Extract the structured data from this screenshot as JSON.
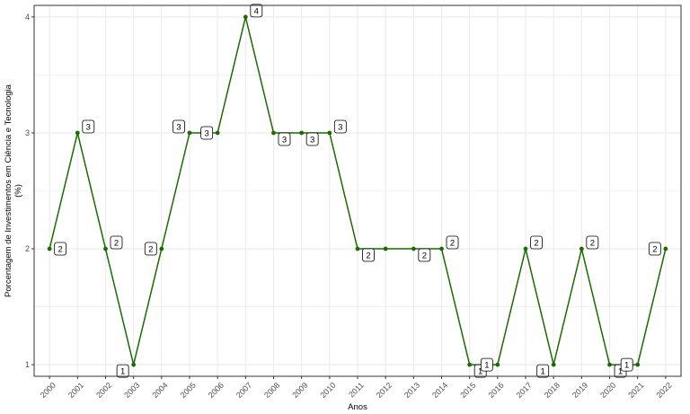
{
  "chart_data": {
    "type": "line",
    "title": "",
    "xlabel": "Anos",
    "ylabel_line1": "Porcentagem de Investimentos em Ciência e Tecnologia",
    "ylabel_line2": "(%)",
    "x": [
      "2000",
      "2001",
      "2002",
      "2003",
      "2004",
      "2005",
      "2006",
      "2007",
      "2008",
      "2009",
      "2010",
      "2011",
      "2012",
      "2013",
      "2014",
      "2015",
      "2016",
      "2017",
      "2018",
      "2019",
      "2020",
      "2021",
      "2022"
    ],
    "values": [
      2,
      3,
      2,
      1,
      2,
      3,
      3,
      4,
      3,
      3,
      3,
      2,
      2,
      2,
      2,
      1,
      1,
      2,
      1,
      2,
      1,
      1,
      2
    ],
    "labels_shown": [
      true,
      true,
      true,
      true,
      true,
      true,
      true,
      true,
      true,
      true,
      true,
      true,
      false,
      true,
      true,
      true,
      true,
      true,
      true,
      true,
      true,
      true,
      true
    ],
    "ylim": [
      0.9,
      4.1
    ],
    "yticks": [
      1,
      2,
      3,
      4
    ],
    "grid": true,
    "colors": {
      "line": "#1a6b00",
      "point": "#1a6b00",
      "grid": "#ebebeb",
      "panel_border": "#333333",
      "label_border": "#000000"
    }
  }
}
